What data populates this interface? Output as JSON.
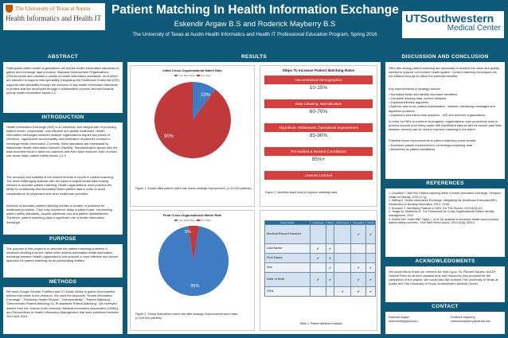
{
  "header": {
    "logo_left_line1": "The University of Texas at Austin",
    "logo_left_line2": "Health Informatics and Health IT",
    "title": "Patient Matching In Health Information Exchange",
    "authors": "Eskendir Argaw B.S and Roderick Mayberry B.S",
    "affiliation": "The University of Texas at Austin Health Informatics and Health IT Professional Education Program, Spring 2016",
    "logo_right_line1": "UTSouthwestern",
    "logo_right_line2": "Medical Center"
  },
  "abstract": {
    "heading": "ABSTRACT",
    "text": "Participants within health organizations will require health information standards to gather and exchange data precisely. Standard Development Organizations (SDOs) create and maintain a variety of health information standards, all of which are intended to support interoperability. Integrating the Healthcare Enterprise (IHE) supports interoperability through the inclusion of key health information standards in profiles that are developed through a collaborative process devoted towards priority health information needs.1,2"
  },
  "introduction": {
    "heading": "INTRODUCTION",
    "p1": "Health Information Exchange (HIE) is an electronic and integral part of providing patient centric, responsible, cost effective and quality healthcare. Health information exchanges between multiple organizations require two points of reference, organization accountability and verification of patient's consent to exchange health information. Currently, these standards are maintained by Nationwide Health Information Network (NwHIN). Standardization issues with the data recorded result in false non-matches and even false matches, both of which can cause major patient safety issues.1,2,3",
    "p2": "The accuracy and usability of the shared records is crucial in patient matching. The most challenging obstacle with the nation's largest health data sharing network is accurate patient matching. Health organizations must possess the ability to consistently and accurately match patient data in order to avoid complications for physicians and other healthcare providers.",
    "p3": "Absence of accurate patient matching creates a number of problems for healthcare providers. They may experience delay in patient care, not meeting patient safety standards, acquire additional cost and patient dissatisfaction. Therefore, patient matching plays a significant role in health information exchange."
  },
  "purpose": {
    "heading": "PURPOSE",
    "text": "The purpose of this project is to describe the patient matching problems & solutions resulting from the nation wide network automated health information exchange between health organizations and propose a more effective and secure approach for patient matching for all participating entities."
  },
  "methods": {
    "heading": "METHODS",
    "text": "We used Google Scholar, PubMed and UT Austin library to gather and examine articles that relate to the research. We used the keywords \"Health Information Exchange\", \"Electronic Health Record\", \"Interoperability\", \"Patient Matching\", \"Deterministic Patient Matching Vs. Probabilistic Patient Matching\". We reviewed articles from the Journal of the American Medical Informatics Association (JAMIA) and Perspectives in Health Information Management that were published between 2013 and 2015."
  },
  "results": {
    "heading": "RESULTS",
    "fig1": {
      "title": "Initial Cross-Organizational Match Rate",
      "legend_true": "True Match Rate",
      "legend_error": "Error Rate",
      "true_label": "10%",
      "error_label": "90%",
      "caption": "Figure 1. Shows initial patient match rate before strategic improvement. (n=10,000 patients)"
    },
    "fig2": {
      "title": "Steps To Increase Patient Matching Rates",
      "steps": [
        {
          "label": "Unconstrained Demographics",
          "value": "10-15%"
        },
        {
          "label": "Data Cleaning, Normalization",
          "value": "60-70%"
        },
        {
          "label": "Algorithmic Refinement, Operational Improvement",
          "value": "85-90%"
        },
        {
          "label": "Pre-worked & Reused Correlations",
          "value": "95%+"
        },
        {
          "label": "Lessons Learned",
          "value": ""
        }
      ],
      "caption": "Figure 2. Identifies steps used to improve matching rates"
    },
    "fig3": {
      "title": "Final Cross-Organizational Match Rate",
      "legend_true": "True Match Rate",
      "legend_error": "Error Rate",
      "true_label": "95%",
      "error_label": "5%",
      "caption": "Figure 3. Shows final patient match rate after strategic improvements were made. (n=340,000 patients)"
    },
    "table1": {
      "headers": [
        "Patient Identifier",
        "Completeness",
        "Validity",
        "Distinctiveness",
        "Comparability",
        "Stability"
      ],
      "rows": [
        {
          "label": "Medical Record Number",
          "marks": [
            "",
            "",
            "",
            "✔",
            "✔"
          ]
        },
        {
          "label": "Last Name",
          "marks": [
            "✔",
            "✔",
            "",
            "",
            ""
          ]
        },
        {
          "label": "First Name",
          "marks": [
            "✔",
            "✔",
            "",
            "",
            ""
          ]
        },
        {
          "label": "Sex",
          "marks": [
            "",
            "✔",
            "",
            "✔",
            "✔"
          ]
        },
        {
          "label": "Date of Birth",
          "marks": [
            "✔",
            "✔",
            "",
            "✔",
            "✔"
          ]
        },
        {
          "label": "SSN",
          "marks": [
            "",
            "",
            "✔",
            "✔",
            "✔"
          ]
        }
      ],
      "caption": "Table 1. Patient Attribute Analysis"
    },
    "colors": {
      "true_match": "#3f7cc4",
      "error": "#c0393b"
    }
  },
  "discussion": {
    "heading": "DISCUSSION AND CONCLUSION",
    "p1": "HIEs with strong patient matching are necessary to achieve the value and quality needed to support our modern health system. Current matching techniques are not efficient enough to utilize the potential benefits.",
    "p2": "Key improvements in strategy include:",
    "bullets": [
      "• Normalize fields and identify important identifiers",
      "• Complete missing data, correct mistakes",
      "• Implement/Refine algorithm",
      "• Address user error, patient authorization, network, interfacing messages and algorithm problems",
      "• Implement and follow best practices - HIE and member organizations"
    ],
    "p3": "In order for HIEs to continue to progress, organizations must proactively work to prevent records from being made with insufficient data as well as ensure past links between records can be used to improve matching in the future.",
    "p4": "Potential future improvements to patient matching could include:",
    "bullets2": [
      "• Increased patient involvement in correcting/completing data",
      "• Biometrics as patient identifiers4"
    ]
  },
  "references": {
    "heading": "REFERENCES",
    "items": [
      "1. Goodbee T, Ball HW. Patient matching within a health information exchange. Perspect Health Inf Manag. 2015;12:1g.",
      "2. Witting K. Health Information Exchange: Integrating the Healthcare Enterprise(IHE). Introduction to Nursing Informatics. 2014; 79-96.",
      "3. Knudson J. Identifying Patients In HIEs. For The Record. 2012;8(24):10.",
      "4. Yeager M, Matthews M. The Framework for Cross-Organizational Patient Identity management. 2015.",
      "5. Weeks DM, Smith MW, Taylor L, et al. An analysis of electronic health record-related patient safety concerns. J Am Med Inform Assoc. 2014;21(6):1053-9."
    ]
  },
  "acknowledgments": {
    "heading": "ACKNOWLEDGMENTS",
    "text": "We would like to thank our mentors Mr. Bob Ligon, Dr. Richard Nauert, and Dr. Leanne Field for all their valuable time and resources they provided for the completion of the project. We would also like to thank The University of Texas at Austin and The University of Texas Southwestern Medical Center."
  },
  "contact": {
    "heading": "CONTACT",
    "name1": "Eskendir Argaw",
    "email1": "eskendir9@gmail.com",
    "name2": "Roderick Mayberry",
    "email2": "roderickmayberry@utexas.edu"
  }
}
